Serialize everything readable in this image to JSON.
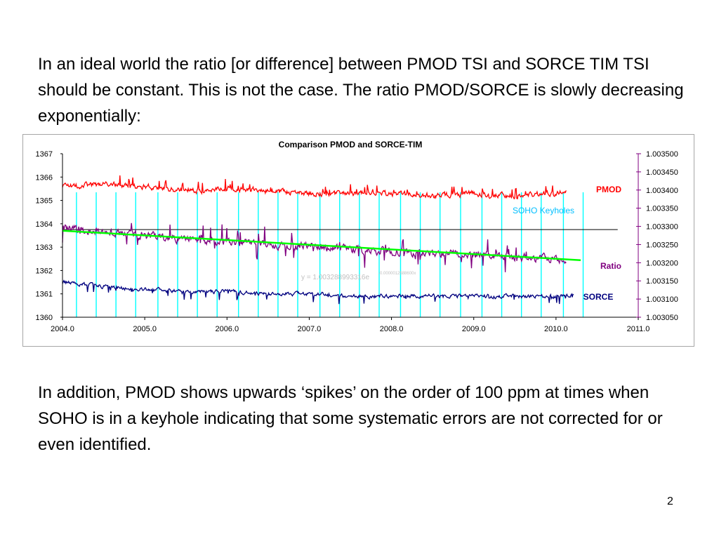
{
  "slide": {
    "intro": "In an ideal world the ratio [or difference] between PMOD TSI and SORCE TIM TSI should be constant. This is not the case. The ratio PMOD/SORCE is slowly decreasing exponentially:",
    "outro": "In addition, PMOD shows upwards ‘spikes’ on the order of 100 ppm at times when SOHO is in a keyhole indicating that some systematic errors are not corrected for or even identified.",
    "page_number": "2"
  },
  "chart_data": {
    "type": "line",
    "title": "Comparison PMOD and SORCE-TIM",
    "x_ticks": [
      "2004.0",
      "2005.0",
      "2006.0",
      "2007.0",
      "2008.0",
      "2009.0",
      "2010.0",
      "2011.0"
    ],
    "xlim": [
      2004.0,
      2011.0
    ],
    "y_left_ticks": [
      "1360",
      "1361",
      "1362",
      "1363",
      "1364",
      "1365",
      "1366",
      "1367"
    ],
    "y_left_lim": [
      1360,
      1367
    ],
    "y_right_ticks": [
      "1.003050",
      "1.003100",
      "1.003150",
      "1.003200",
      "1.003250",
      "1.003300",
      "1.003350",
      "1.003400",
      "1.003450",
      "1.003500"
    ],
    "y_right_lim": [
      1.00305,
      1.0035
    ],
    "series": [
      {
        "name": "PMOD",
        "axis": "left",
        "color": "#ff0000",
        "x": [
          2004.0,
          2004.5,
          2005.0,
          2005.5,
          2006.0,
          2006.5,
          2007.0,
          2007.5,
          2008.0,
          2008.5,
          2009.0,
          2009.5,
          2010.0,
          2010.13
        ],
        "values": [
          1365.6,
          1365.7,
          1365.6,
          1365.4,
          1365.5,
          1365.4,
          1365.3,
          1365.3,
          1365.3,
          1365.2,
          1365.3,
          1365.2,
          1365.3,
          1365.4
        ]
      },
      {
        "name": "Ratio",
        "axis": "right",
        "color": "#800080",
        "x": [
          2004.0,
          2004.5,
          2005.0,
          2005.5,
          2006.0,
          2006.5,
          2007.0,
          2007.5,
          2008.0,
          2008.5,
          2009.0,
          2009.5,
          2010.0,
          2010.13
        ],
        "values": [
          1.003295,
          1.003285,
          1.003275,
          1.003265,
          1.003258,
          1.00325,
          1.003245,
          1.003238,
          1.003232,
          1.003225,
          1.003222,
          1.003215,
          1.003212,
          1.00321
        ]
      },
      {
        "name": "SORCE",
        "axis": "left",
        "color": "#00007f",
        "x": [
          2004.0,
          2004.5,
          2005.0,
          2005.5,
          2006.0,
          2006.5,
          2007.0,
          2007.5,
          2008.0,
          2008.5,
          2009.0,
          2009.5,
          2010.0,
          2010.22
        ],
        "values": [
          1361.5,
          1361.3,
          1361.2,
          1361.1,
          1361.1,
          1361.0,
          1361.0,
          1360.9,
          1360.9,
          1360.9,
          1360.9,
          1360.9,
          1360.9,
          1361.0
        ]
      }
    ],
    "trendline": {
      "label": "y = 1.003288993316e",
      "exponent": "-0.0000012588600x",
      "color": "#00ff00",
      "x_range": [
        2004.0,
        2010.3
      ],
      "values": [
        1.003288,
        1.003207
      ]
    },
    "reference_line": {
      "axis": "left",
      "value": 1363.75,
      "x_range": [
        2004.0,
        2010.75
      ],
      "color": "#000000"
    },
    "keyholes": {
      "label": "SOHO Keyholes",
      "color": "#00ffff",
      "x": [
        2004.17,
        2004.41,
        2004.65,
        2004.89,
        2005.16,
        2005.4,
        2005.64,
        2005.88,
        2006.14,
        2006.38,
        2006.62,
        2006.86,
        2007.13,
        2007.37,
        2007.61,
        2007.85,
        2008.11,
        2008.35,
        2008.59,
        2008.84,
        2009.1,
        2009.34,
        2009.58,
        2009.82,
        2010.09,
        2010.33
      ]
    },
    "legend_labels": [
      "PMOD",
      "Ratio",
      "SORCE"
    ],
    "grid": false
  }
}
